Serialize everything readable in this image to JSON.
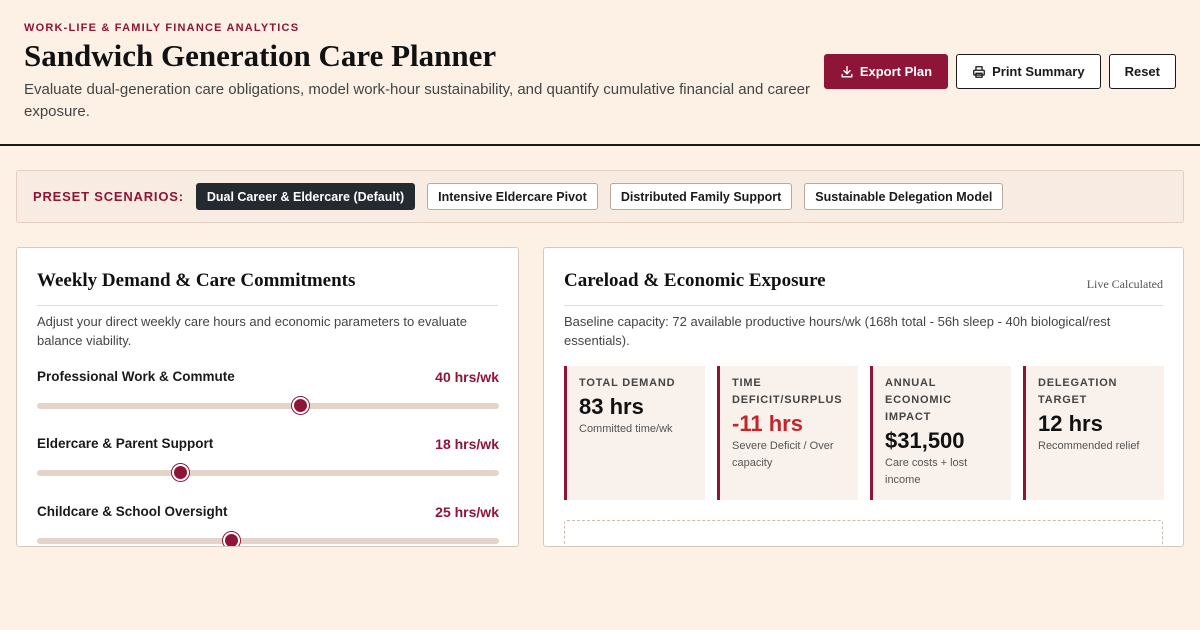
{
  "header": {
    "eyebrow": "WORK-LIFE & FAMILY FINANCE ANALYTICS",
    "title": "Sandwich Generation Care Planner",
    "subtitle": "Evaluate dual-generation care obligations, model work-hour sustainability, and quantify cumulative financial and career exposure.",
    "actions": {
      "export_label": "Export Plan",
      "print_label": "Print Summary",
      "reset_label": "Reset"
    }
  },
  "presets": {
    "label": "PRESET SCENARIOS:",
    "items": [
      {
        "label": "Dual Career & Eldercare (Default)",
        "active": true
      },
      {
        "label": "Intensive Eldercare Pivot",
        "active": false
      },
      {
        "label": "Distributed Family Support",
        "active": false
      },
      {
        "label": "Sustainable Delegation Model",
        "active": false
      }
    ]
  },
  "demand_panel": {
    "title": "Weekly Demand & Care Commitments",
    "description": "Adjust your direct weekly care hours and economic parameters to evaluate balance viability.",
    "sliders": [
      {
        "label": "Professional Work & Commute",
        "value_label": "40 hrs/wk",
        "level": 0.57
      },
      {
        "label": "Eldercare & Parent Support",
        "value_label": "18 hrs/wk",
        "level": 0.31
      },
      {
        "label": "Childcare & School Oversight",
        "value_label": "25 hrs/wk",
        "level": 0.42
      }
    ]
  },
  "exposure_panel": {
    "title": "Careload & Economic Exposure",
    "badge": "Live Calculated",
    "description": "Baseline capacity: 72 available productive hours/wk (168h total - 56h sleep - 40h biological/rest essentials).",
    "metrics": [
      {
        "label": "TOTAL DEMAND",
        "value": "83 hrs",
        "note": "Committed time/wk",
        "deficit": false
      },
      {
        "label": "TIME DEFICIT/SURPLUS",
        "value": "-11 hrs",
        "note": "Severe Deficit / Over capacity",
        "deficit": true
      },
      {
        "label": "ANNUAL ECONOMIC IMPACT",
        "value": "$31,500",
        "note": "Care costs + lost income",
        "deficit": false
      },
      {
        "label": "DELEGATION TARGET",
        "value": "12 hrs",
        "note": "Recommended relief",
        "deficit": false
      }
    ]
  },
  "colors": {
    "accent": "#8e1538",
    "background": "#fdf1e6",
    "deficit": "#c4252a",
    "dark_chip": "#252a31"
  }
}
